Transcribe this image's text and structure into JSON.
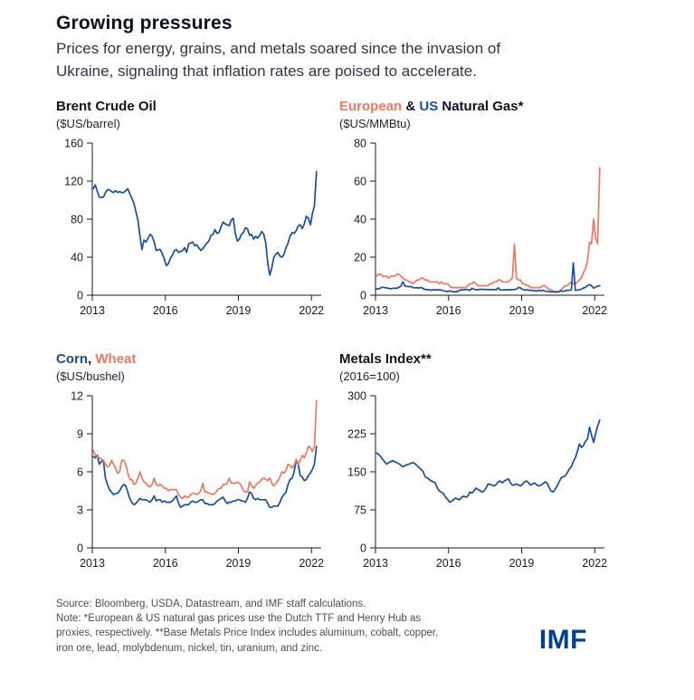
{
  "header": {
    "title": "Growing pressures",
    "subtitle_line1": "Prices for energy, grains, and metals soared since the invasion of",
    "subtitle_line2": "Ukraine, signaling that inflation rates are poised to accelerate."
  },
  "colors": {
    "blue": "#1a4e9c",
    "salmon": "#ee7763",
    "axis": "#1a1a1a",
    "logo_blue": "#00418c"
  },
  "footer": {
    "lines": [
      "Source: Bloomberg, USDA, Datastream, and IMF staff calculations.",
      "Note: *European & US natural gas prices use the Dutch TTF and Henry Hub as",
      "proxies, respectively. **Base Metals Price Index includes aluminum, cobalt, copper,",
      "iron ore, lead, molybdenum, nickel, tin, uranium, and zinc."
    ],
    "logo": "IMF"
  },
  "chart_data": [
    {
      "type": "line",
      "title_parts": [
        {
          "text": "Brent Crude Oil",
          "color": "#111122"
        }
      ],
      "unit": "($US/barrel)",
      "ylim": [
        0,
        160
      ],
      "yticks": [
        0,
        40,
        80,
        120,
        160
      ],
      "xlim": [
        2013,
        2022.4
      ],
      "xticks": [
        2013,
        2016,
        2019,
        2022
      ],
      "x_start": 2013.04,
      "x_step": 0.08333,
      "series": [
        {
          "name": "Brent Crude Oil",
          "color": "#1a4e9c",
          "values": [
            112,
            116,
            109,
            103,
            103,
            103,
            108,
            111,
            111,
            109,
            108,
            110,
            108,
            109,
            108,
            108,
            110,
            112,
            107,
            102,
            97,
            88,
            79,
            62,
            48,
            58,
            56,
            60,
            64,
            62,
            56,
            47,
            48,
            48,
            44,
            38,
            31,
            33,
            39,
            42,
            47,
            48,
            45,
            46,
            47,
            50,
            45,
            54,
            55,
            56,
            52,
            53,
            50,
            47,
            49,
            52,
            55,
            57,
            63,
            64,
            69,
            65,
            66,
            72,
            77,
            75,
            74,
            73,
            79,
            81,
            65,
            57,
            59,
            64,
            66,
            71,
            70,
            63,
            64,
            59,
            62,
            60,
            63,
            67,
            64,
            55,
            33,
            21,
            29,
            40,
            43,
            45,
            41,
            40,
            43,
            50,
            55,
            62,
            66,
            65,
            68,
            73,
            74,
            70,
            75,
            83,
            81,
            74,
            86,
            94,
            130
          ]
        }
      ]
    },
    {
      "type": "line",
      "title_parts": [
        {
          "text": "European",
          "color": "#ee7763"
        },
        {
          "text": " & ",
          "color": "#111122"
        },
        {
          "text": "US",
          "color": "#1a4e9c"
        },
        {
          "text": " Natural Gas*",
          "color": "#111122"
        }
      ],
      "unit": "($US/MMBtu)",
      "ylim": [
        0,
        80
      ],
      "yticks": [
        0,
        20,
        40,
        60,
        80
      ],
      "xlim": [
        2013,
        2022.4
      ],
      "xticks": [
        2013,
        2016,
        2019,
        2022
      ],
      "x_start": 2013.04,
      "x_step": 0.08333,
      "series": [
        {
          "name": "European Natural Gas",
          "color": "#ee7763",
          "values": [
            10,
            11,
            11,
            10,
            10,
            10,
            9,
            10,
            10,
            10,
            11,
            11,
            10,
            9,
            8,
            8,
            7,
            7,
            6,
            7,
            8,
            8,
            9,
            9,
            8,
            8,
            7,
            7,
            7,
            7,
            7,
            6,
            7,
            6,
            6,
            6,
            5,
            4,
            4,
            4,
            4,
            4,
            4,
            4,
            4,
            5,
            6,
            6,
            7,
            6,
            5,
            5,
            5,
            5,
            5,
            5,
            6,
            6,
            7,
            7,
            8,
            8,
            7,
            7,
            7,
            7,
            8,
            9,
            27,
            9,
            8,
            8,
            6,
            6,
            5,
            5,
            4,
            4,
            4,
            4,
            4,
            4,
            5,
            5,
            4,
            3,
            3,
            2,
            2,
            2,
            2,
            3,
            4,
            5,
            5,
            6,
            7,
            6,
            6,
            7,
            8,
            9,
            12,
            14,
            18,
            28,
            27,
            40,
            30,
            27,
            67
          ]
        },
        {
          "name": "US Natural Gas",
          "color": "#1a4e9c",
          "values": [
            3.3,
            3.3,
            3.8,
            4.2,
            4,
            3.8,
            3.6,
            3.4,
            3.6,
            3.7,
            3.6,
            4.2,
            4.7,
            7,
            4.9,
            4.6,
            4.5,
            4.6,
            4,
            3.9,
            3.9,
            3.8,
            4.1,
            3.5,
            3,
            2.9,
            2.8,
            2.6,
            2.9,
            2.8,
            2.8,
            2.8,
            2.7,
            2.3,
            2.1,
            1.9,
            2.3,
            2,
            1.7,
            1.9,
            1.9,
            2.6,
            2.8,
            2.8,
            3,
            2.9,
            2.5,
            3.6,
            3.3,
            2.8,
            2.9,
            3.1,
            3.1,
            3,
            3,
            2.9,
            3,
            2.9,
            3,
            2.8,
            3.9,
            2.7,
            2.7,
            2.8,
            2.8,
            2.9,
            2.8,
            2.9,
            3,
            3.2,
            4.1,
            3.8,
            3.1,
            2.7,
            2.9,
            2.6,
            2.6,
            2.4,
            2.4,
            2.2,
            2.6,
            2.3,
            2.6,
            2.2,
            2,
            1.9,
            1.8,
            1.7,
            1.7,
            1.6,
            1.8,
            2.3,
            2,
            2.4,
            2.6,
            2.6,
            2.7,
            17,
            2.6,
            2.7,
            2.9,
            3.2,
            3.8,
            4.1,
            5.1,
            5.5,
            5,
            3.7,
            4.3,
            4.7,
            5
          ]
        }
      ]
    },
    {
      "type": "line",
      "title_parts": [
        {
          "text": "Corn",
          "color": "#1a4e9c"
        },
        {
          "text": ", ",
          "color": "#111122"
        },
        {
          "text": "Wheat",
          "color": "#ee7763"
        }
      ],
      "unit": "($US/bushel)",
      "ylim": [
        0,
        12
      ],
      "yticks": [
        0,
        3,
        6,
        9,
        12
      ],
      "xlim": [
        2013,
        2022.4
      ],
      "xticks": [
        2013,
        2016,
        2019,
        2022
      ],
      "x_start": 2013.04,
      "x_step": 0.08333,
      "series": [
        {
          "name": "Corn",
          "color": "#1a4e9c",
          "values": [
            7.2,
            7.1,
            7.3,
            6.6,
            6.8,
            6.9,
            5.5,
            5,
            4.6,
            4.4,
            4.2,
            4.3,
            4.3,
            4.5,
            4.8,
            5,
            4.9,
            4.4,
            3.9,
            3.6,
            3.4,
            3.5,
            3.7,
            3.9,
            3.8,
            3.8,
            3.8,
            3.7,
            3.6,
            3.8,
            4.1,
            3.7,
            3.8,
            3.8,
            3.6,
            3.7,
            3.6,
            3.6,
            3.6,
            3.7,
            3.9,
            4.1,
            3.5,
            3.2,
            3.3,
            3.4,
            3.4,
            3.4,
            3.6,
            3.7,
            3.6,
            3.6,
            3.7,
            3.8,
            3.8,
            3.5,
            3.5,
            3.4,
            3.4,
            3.4,
            3.5,
            3.7,
            3.8,
            3.9,
            4,
            3.7,
            3.5,
            3.6,
            3.6,
            3.7,
            3.7,
            3.8,
            3.8,
            3.7,
            3.7,
            3.6,
            3.9,
            4.4,
            4.3,
            3.9,
            3.8,
            3.9,
            3.8,
            3.8,
            3.8,
            3.8,
            3.5,
            3.2,
            3.2,
            3.3,
            3.3,
            3.3,
            3.6,
            4,
            4.2,
            4.4,
            5,
            5.4,
            5.5,
            6,
            6.9,
            6.6,
            5.7,
            5.6,
            5.3,
            5.4,
            5.7,
            5.9,
            6.2,
            6.6,
            8
          ]
        },
        {
          "name": "Wheat",
          "color": "#ee7763",
          "values": [
            7.7,
            7.3,
            7.2,
            7.1,
            7,
            6.9,
            6.6,
            6.4,
            6.5,
            6.9,
            6.6,
            6.3,
            5.9,
            6,
            6.9,
            6.9,
            6.6,
            5.9,
            5.4,
            5.4,
            5,
            5.1,
            5.5,
            6,
            5.5,
            5.2,
            5.1,
            4.9,
            4.8,
            5,
            5.5,
            5,
            4.9,
            5,
            4.9,
            4.7,
            4.7,
            4.5,
            4.6,
            4.6,
            4.6,
            4.6,
            4.2,
            4,
            3.9,
            4.1,
            4,
            4,
            4.2,
            4.3,
            4.3,
            4.2,
            4.3,
            4.5,
            5.1,
            4.4,
            4.4,
            4.3,
            4.3,
            4.2,
            4.3,
            4.5,
            4.7,
            4.7,
            5,
            5,
            5.1,
            5.5,
            5.1,
            5.1,
            5.1,
            5.2,
            5.1,
            4.9,
            4.5,
            4.4,
            4.4,
            5.2,
            4.9,
            4.7,
            4.9,
            5.1,
            5.2,
            5.4,
            5.5,
            5.4,
            5.3,
            5.5,
            5.1,
            4.9,
            5.1,
            5.3,
            5.6,
            6,
            5.9,
            6.1,
            6.6,
            6.5,
            6.3,
            6.5,
            7,
            6.6,
            6.9,
            7.3,
            7.1,
            7.5,
            8,
            7.9,
            7.6,
            8,
            11.6
          ]
        }
      ]
    },
    {
      "type": "line",
      "title_parts": [
        {
          "text": "Metals Index**",
          "color": "#111122"
        }
      ],
      "unit": "(2016=100)",
      "ylim": [
        0,
        300
      ],
      "yticks": [
        0,
        75,
        150,
        225,
        300
      ],
      "xlim": [
        2013,
        2022.4
      ],
      "xticks": [
        2013,
        2016,
        2019,
        2022
      ],
      "x_start": 2013.04,
      "x_step": 0.08333,
      "series": [
        {
          "name": "Metals Index",
          "color": "#1a4e9c",
          "values": [
            187,
            185,
            180,
            175,
            170,
            165,
            168,
            170,
            172,
            170,
            168,
            166,
            163,
            160,
            162,
            164,
            165,
            167,
            168,
            166,
            162,
            158,
            155,
            150,
            140,
            138,
            135,
            132,
            130,
            128,
            118,
            112,
            110,
            107,
            100,
            96,
            90,
            92,
            95,
            98,
            96,
            95,
            100,
            102,
            100,
            102,
            110,
            108,
            112,
            118,
            115,
            113,
            110,
            112,
            118,
            126,
            125,
            124,
            122,
            125,
            130,
            132,
            128,
            132,
            134,
            136,
            128,
            124,
            124,
            126,
            124,
            122,
            126,
            130,
            132,
            128,
            124,
            126,
            128,
            124,
            122,
            124,
            126,
            130,
            128,
            120,
            112,
            110,
            115,
            122,
            130,
            138,
            140,
            142,
            148,
            155,
            160,
            170,
            178,
            190,
            205,
            198,
            202,
            210,
            215,
            238,
            222,
            208,
            225,
            240,
            252
          ]
        }
      ]
    }
  ]
}
